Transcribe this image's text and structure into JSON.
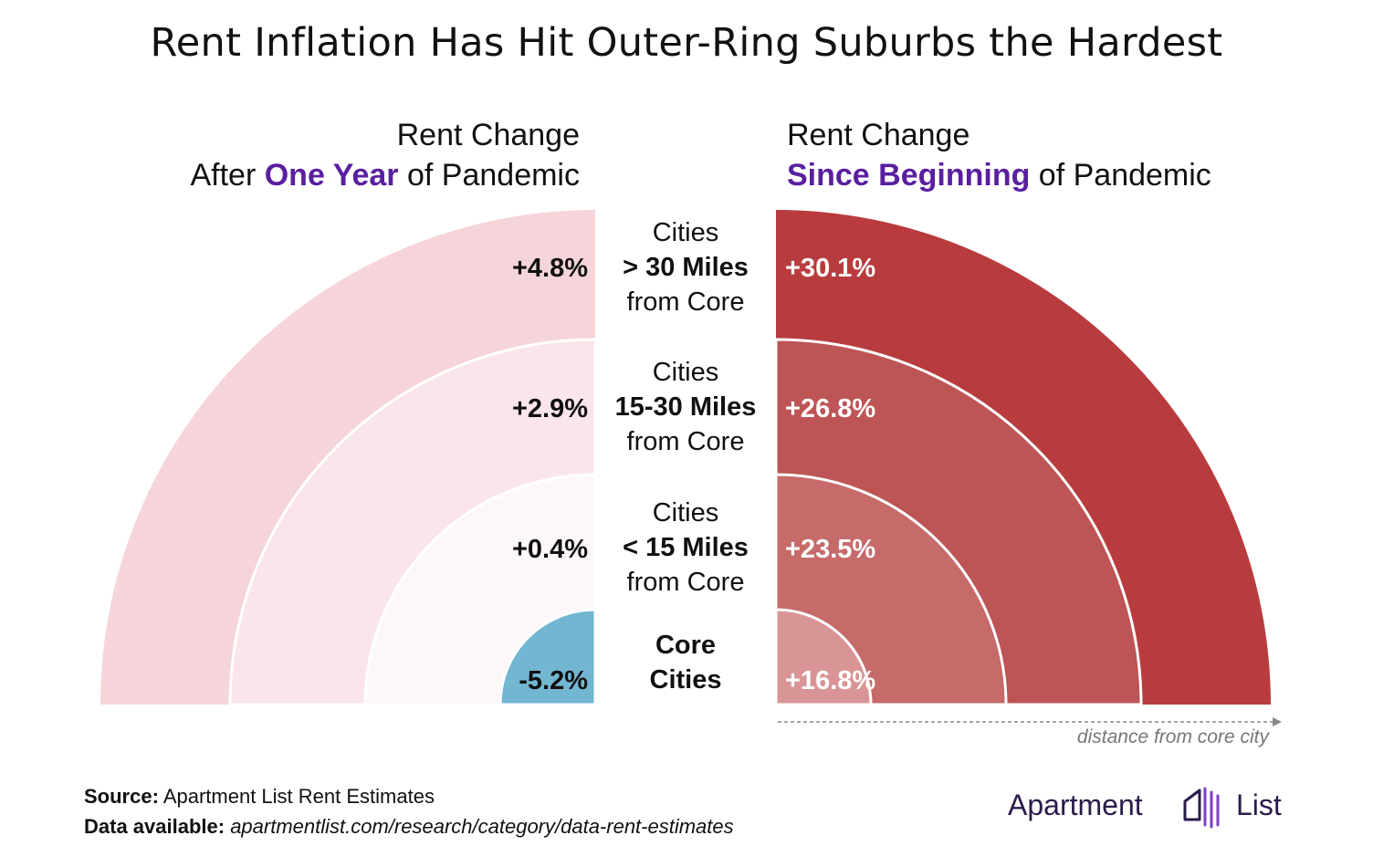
{
  "title": "Rent Inflation Has Hit Outer-Ring Suburbs the Hardest",
  "left_header": {
    "line1": "Rent Change",
    "prefix": "After ",
    "highlight": "One Year",
    "suffix": " of Pandemic"
  },
  "right_header": {
    "line1": "Rent Change",
    "highlight": "Since Beginning",
    "suffix": " of Pandemic"
  },
  "ring_labels": [
    {
      "line1": "Cities",
      "bold": "> 30 Miles",
      "line3": "from Core"
    },
    {
      "line1": "Cities",
      "bold": "15-30 Miles",
      "line3": "from Core"
    },
    {
      "line1": "Cities",
      "bold": "< 15 Miles",
      "line3": "from Core"
    },
    {
      "line1": "",
      "bold": "Core",
      "line3": "Cities"
    }
  ],
  "axis_note": "distance from core city",
  "footer": {
    "source_label": "Source:",
    "source_text": " Apartment List Rent Estimates",
    "data_label": "Data available:",
    "data_text": " apartmentlist.com/research/category/data-rent-estimates"
  },
  "logo": {
    "word1": "Apartment",
    "word2": "List",
    "icon": "apartment-list-logo-icon"
  },
  "colors": {
    "accent": "#5a1fa0",
    "negative": "#72b6d2",
    "left_max": "#f6d5da",
    "right_max": "#b83c3e"
  },
  "chart_data": [
    {
      "type": "radial-bar",
      "title": "Rent Change After One Year of Pandemic",
      "categories": [
        "Core Cities",
        "Cities < 15 Miles from Core",
        "Cities 15-30 Miles from Core",
        "Cities > 30 Miles from Core"
      ],
      "values": [
        -5.2,
        0.4,
        2.9,
        4.8
      ],
      "labels": [
        "-5.2%",
        "+0.4%",
        "+2.9%",
        "+4.8%"
      ],
      "colors": [
        "#72b6d2",
        "#fdf7f8",
        "#fae6ea",
        "#f6d5da"
      ]
    },
    {
      "type": "radial-bar",
      "title": "Rent Change Since Beginning of Pandemic",
      "categories": [
        "Core Cities",
        "Cities < 15 Miles from Core",
        "Cities 15-30 Miles from Core",
        "Cities > 30 Miles from Core"
      ],
      "values": [
        16.8,
        23.5,
        26.8,
        30.1
      ],
      "labels": [
        "+16.8%",
        "+23.5%",
        "+26.8%",
        "+30.1%"
      ],
      "colors": [
        "#d99595",
        "#c66a6a",
        "#bd5455",
        "#b83c3e"
      ]
    }
  ]
}
